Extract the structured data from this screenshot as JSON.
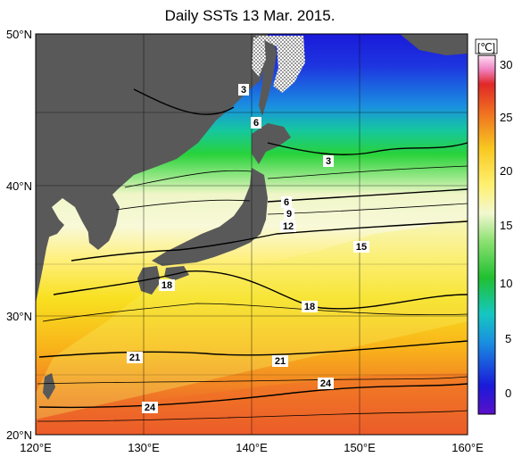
{
  "title": "Daily SSTs 13 Mar. 2015.",
  "colorbar": {
    "unit_label": "[℃]",
    "ticks": [
      "30",
      "25",
      "20",
      "15",
      "10",
      "5",
      "0"
    ],
    "range": [
      -2,
      32
    ]
  },
  "axes": {
    "lat_labels": [
      "50°N",
      "40°N",
      "30°N",
      "20°N"
    ],
    "lon_labels": [
      "120°E",
      "130°E",
      "140°E",
      "150°E",
      "160°E"
    ],
    "lat_range": [
      20,
      50
    ],
    "lon_range": [
      120,
      160
    ]
  },
  "contour_labels": [
    "3",
    "6",
    "3",
    "6",
    "9",
    "12",
    "15",
    "18",
    "18",
    "21",
    "21",
    "24",
    "24"
  ],
  "colors": {
    "land": "#595959",
    "ice": "#ffffff"
  }
}
